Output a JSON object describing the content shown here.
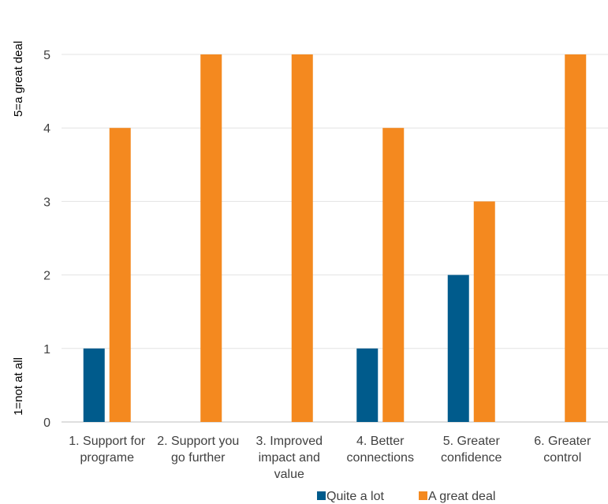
{
  "chart_data": {
    "type": "bar",
    "categories": [
      [
        "1. Support for",
        "programe"
      ],
      [
        "2. Support you",
        "go further"
      ],
      [
        "3. Improved",
        "impact and",
        "value"
      ],
      [
        "4. Better",
        "connections"
      ],
      [
        "5. Greater",
        "confidence"
      ],
      [
        "6. Greater",
        "control"
      ]
    ],
    "series": [
      {
        "name": "Quite a lot",
        "color": "#005b8c",
        "values": [
          1,
          null,
          null,
          1,
          2,
          null
        ]
      },
      {
        "name": "A great deal",
        "color": "#f4891f",
        "values": [
          4,
          5,
          5,
          4,
          3,
          5
        ]
      }
    ],
    "ylim": [
      0,
      5
    ],
    "yticks": [
      "0",
      "1",
      "2",
      "3",
      "4",
      "5"
    ],
    "y_side_labels": {
      "low": "1=not at all",
      "high": "5=a great deal"
    },
    "grid": true,
    "legend_position": "bottom"
  }
}
